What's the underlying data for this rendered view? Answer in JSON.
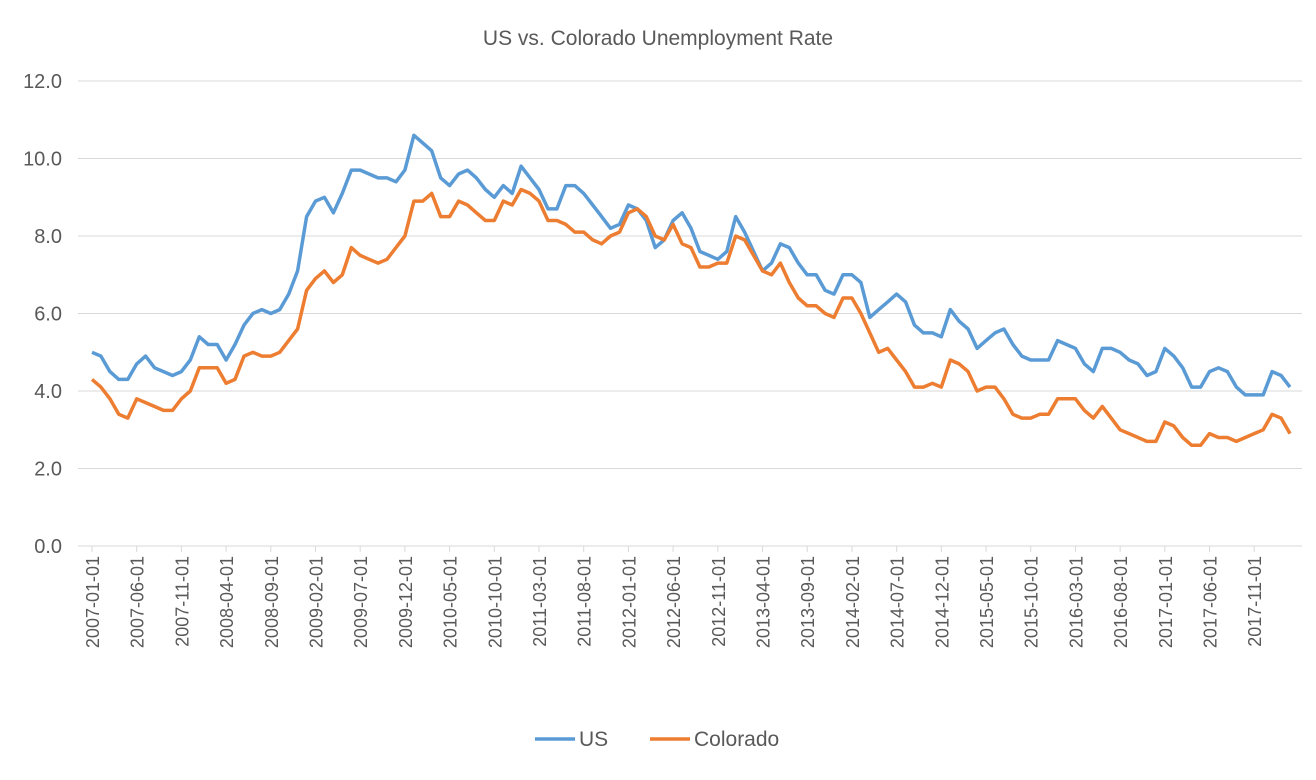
{
  "chart_data": {
    "type": "line",
    "title": "US vs. Colorado Unemployment Rate",
    "xlabel": "",
    "ylabel": "",
    "ylim": [
      0,
      12
    ],
    "yticks": [
      "0.0",
      "2.0",
      "4.0",
      "6.0",
      "8.0",
      "10.0",
      "12.0"
    ],
    "grid": true,
    "legend_position": "bottom",
    "x_start": "2007-01-01",
    "x_frequency": "monthly",
    "x_tick_labels": [
      "2007-01-01",
      "2007-06-01",
      "2007-11-01",
      "2008-04-01",
      "2008-09-01",
      "2009-02-01",
      "2009-07-01",
      "2009-12-01",
      "2010-05-01",
      "2010-10-01",
      "2011-03-01",
      "2011-08-01",
      "2012-01-01",
      "2012-06-01",
      "2012-11-01",
      "2013-04-01",
      "2013-09-01",
      "2014-02-01",
      "2014-07-01",
      "2014-12-01",
      "2015-05-01",
      "2015-10-01",
      "2016-03-01",
      "2016-08-01",
      "2017-01-01",
      "2017-06-01",
      "2017-11-01"
    ],
    "series": [
      {
        "name": "US",
        "color": "#5B9BD5",
        "values": [
          5.0,
          4.9,
          4.5,
          4.3,
          4.3,
          4.7,
          4.9,
          4.6,
          4.5,
          4.4,
          4.5,
          4.8,
          5.4,
          5.2,
          5.2,
          4.8,
          5.2,
          5.7,
          6.0,
          6.1,
          6.0,
          6.1,
          6.5,
          7.1,
          8.5,
          8.9,
          9.0,
          8.6,
          9.1,
          9.7,
          9.7,
          9.6,
          9.5,
          9.5,
          9.4,
          9.7,
          10.6,
          10.4,
          10.2,
          9.5,
          9.3,
          9.6,
          9.7,
          9.5,
          9.2,
          9.0,
          9.3,
          9.1,
          9.8,
          9.5,
          9.2,
          8.7,
          8.7,
          9.3,
          9.3,
          9.1,
          8.8,
          8.5,
          8.2,
          8.3,
          8.8,
          8.7,
          8.4,
          7.7,
          7.9,
          8.4,
          8.6,
          8.2,
          7.6,
          7.5,
          7.4,
          7.6,
          8.5,
          8.1,
          7.6,
          7.1,
          7.3,
          7.8,
          7.7,
          7.3,
          7.0,
          7.0,
          6.6,
          6.5,
          7.0,
          7.0,
          6.8,
          5.9,
          6.1,
          6.3,
          6.5,
          6.3,
          5.7,
          5.5,
          5.5,
          5.4,
          6.1,
          5.8,
          5.6,
          5.1,
          5.3,
          5.5,
          5.6,
          5.2,
          4.9,
          4.8,
          4.8,
          4.8,
          5.3,
          5.2,
          5.1,
          4.7,
          4.5,
          5.1,
          5.1,
          5.0,
          4.8,
          4.7,
          4.4,
          4.5,
          5.1,
          4.9,
          4.6,
          4.1,
          4.1,
          4.5,
          4.6,
          4.5,
          4.1,
          3.9,
          3.9,
          3.9,
          4.5,
          4.4,
          4.1
        ]
      },
      {
        "name": "Colorado",
        "color": "#ED7D31",
        "values": [
          4.3,
          4.1,
          3.8,
          3.4,
          3.3,
          3.8,
          3.7,
          3.6,
          3.5,
          3.5,
          3.8,
          4.0,
          4.6,
          4.6,
          4.6,
          4.2,
          4.3,
          4.9,
          5.0,
          4.9,
          4.9,
          5.0,
          5.3,
          5.6,
          6.6,
          6.9,
          7.1,
          6.8,
          7.0,
          7.7,
          7.5,
          7.4,
          7.3,
          7.4,
          7.7,
          8.0,
          8.9,
          8.9,
          9.1,
          8.5,
          8.5,
          8.9,
          8.8,
          8.6,
          8.4,
          8.4,
          8.9,
          8.8,
          9.2,
          9.1,
          8.9,
          8.4,
          8.4,
          8.3,
          8.1,
          8.1,
          7.9,
          7.8,
          8.0,
          8.1,
          8.6,
          8.7,
          8.5,
          8.0,
          7.9,
          8.3,
          7.8,
          7.7,
          7.2,
          7.2,
          7.3,
          7.3,
          8.0,
          7.9,
          7.5,
          7.1,
          7.0,
          7.3,
          6.8,
          6.4,
          6.2,
          6.2,
          6.0,
          5.9,
          6.4,
          6.4,
          6.0,
          5.5,
          5.0,
          5.1,
          4.8,
          4.5,
          4.1,
          4.1,
          4.2,
          4.1,
          4.8,
          4.7,
          4.5,
          4.0,
          4.1,
          4.1,
          3.8,
          3.4,
          3.3,
          3.3,
          3.4,
          3.4,
          3.8,
          3.8,
          3.8,
          3.5,
          3.3,
          3.6,
          3.3,
          3.0,
          2.9,
          2.8,
          2.7,
          2.7,
          3.2,
          3.1,
          2.8,
          2.6,
          2.6,
          2.9,
          2.8,
          2.8,
          2.7,
          2.8,
          2.9,
          3.0,
          3.4,
          3.3,
          2.9
        ]
      }
    ]
  }
}
